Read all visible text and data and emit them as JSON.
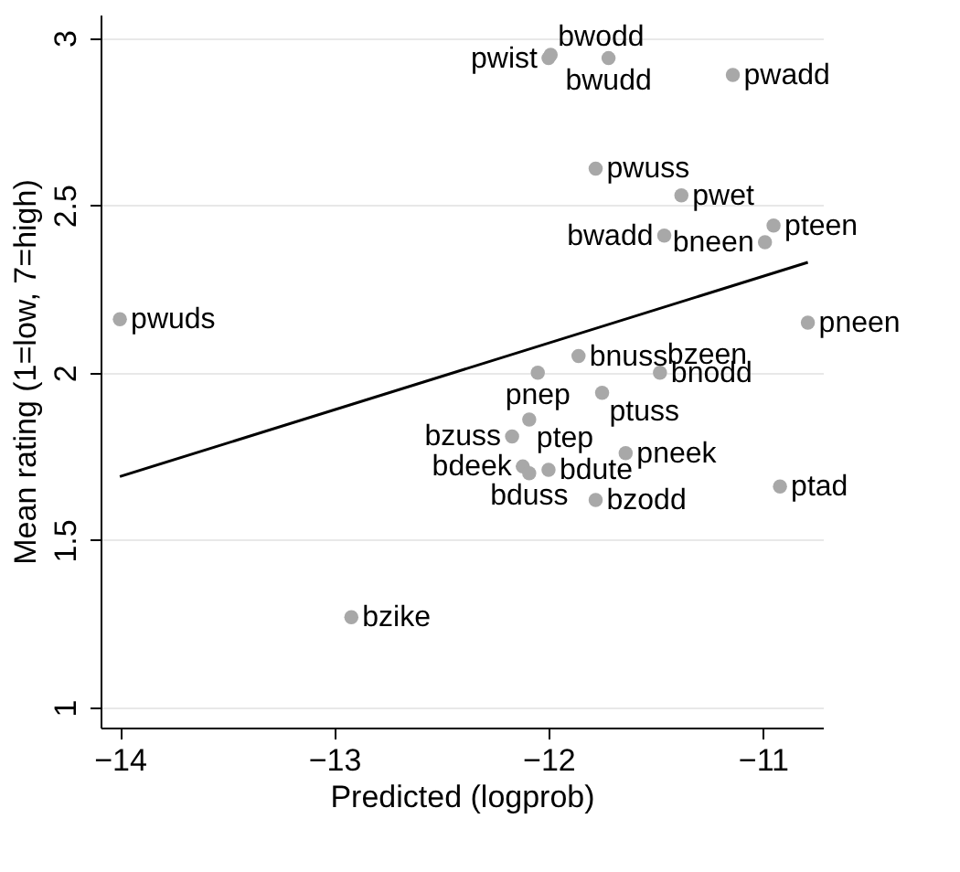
{
  "chart_data": {
    "type": "scatter",
    "xlabel": "Predicted (logprob)",
    "ylabel": "Mean rating (1=low, 7=high)",
    "xlim": [
      -14.09,
      -10.72
    ],
    "ylim": [
      0.94,
      3.07
    ],
    "xticks": [
      {
        "value": -14,
        "label": "−14"
      },
      {
        "value": -13,
        "label": "−13"
      },
      {
        "value": -12,
        "label": "−12"
      },
      {
        "value": -11,
        "label": "−11"
      }
    ],
    "yticks": [
      1,
      1.5,
      2,
      2.5,
      3
    ],
    "grid": "y",
    "series": [
      {
        "marker": "circle",
        "color": "#a8a8a8",
        "x": [
          -14.0,
          -12.92,
          -12.0,
          -11.99,
          -11.72,
          -11.14,
          -11.78,
          -11.38,
          -10.95,
          -10.99,
          -11.46,
          -10.79,
          -11.86,
          -12.05,
          -11.48,
          -11.75,
          -12.09,
          -12.17,
          -12.12,
          -12.09,
          -12.0,
          -11.64,
          -11.78,
          -10.92
        ],
        "values": [
          2.16,
          1.27,
          2.94,
          2.95,
          2.94,
          2.89,
          2.61,
          2.53,
          2.44,
          2.39,
          2.41,
          2.15,
          2.05,
          2.0,
          2.0,
          1.94,
          1.86,
          1.81,
          1.72,
          1.7,
          1.71,
          1.76,
          1.62,
          1.66
        ]
      },
      {
        "type": "line",
        "marker": "none",
        "color": "#000000",
        "line_style": "solid",
        "x": [
          -14.0,
          -10.79
        ],
        "values": [
          1.69,
          2.33
        ]
      }
    ],
    "annotations": [
      {
        "text": "pwuds",
        "x": -14.0,
        "y": 2.16
      },
      {
        "text": "bzike",
        "x": -12.92,
        "y": 1.27
      },
      {
        "text": "pwist",
        "x": -12.0,
        "y": 2.94
      },
      {
        "text": "bwodd",
        "x": -11.99,
        "y": 2.95
      },
      {
        "text": "bwudd",
        "x": -11.72,
        "y": 2.94
      },
      {
        "text": "pwadd",
        "x": -11.14,
        "y": 2.89
      },
      {
        "text": "pwuss",
        "x": -11.78,
        "y": 2.61
      },
      {
        "text": "pwet",
        "x": -11.38,
        "y": 2.53
      },
      {
        "text": "pteen",
        "x": -10.95,
        "y": 2.44
      },
      {
        "text": "bneen",
        "x": -10.99,
        "y": 2.39
      },
      {
        "text": "bwadd",
        "x": -11.46,
        "y": 2.41
      },
      {
        "text": "pneen",
        "x": -10.79,
        "y": 2.15
      },
      {
        "text": "bnuss",
        "x": -11.86,
        "y": 2.05
      },
      {
        "text": "pnep",
        "x": -12.05,
        "y": 2.0
      },
      {
        "text": "bnodd",
        "x": -11.48,
        "y": 2.0
      },
      {
        "text": "ptuss",
        "x": -11.75,
        "y": 1.94
      },
      {
        "text": "ptep",
        "x": -12.09,
        "y": 1.86
      },
      {
        "text": "bzuss",
        "x": -12.17,
        "y": 1.81
      },
      {
        "text": "bdeek",
        "x": -12.12,
        "y": 1.72
      },
      {
        "text": "bduss",
        "x": -12.09,
        "y": 1.7
      },
      {
        "text": "bdute",
        "x": -12.0,
        "y": 1.71
      },
      {
        "text": "pneek",
        "x": -11.64,
        "y": 1.76
      },
      {
        "text": "bzodd",
        "x": -11.78,
        "y": 1.62
      },
      {
        "text": "ptad",
        "x": -10.92,
        "y": 1.66
      },
      {
        "text": "bzeen",
        "x": -11.48,
        "y": 2.0
      }
    ]
  }
}
